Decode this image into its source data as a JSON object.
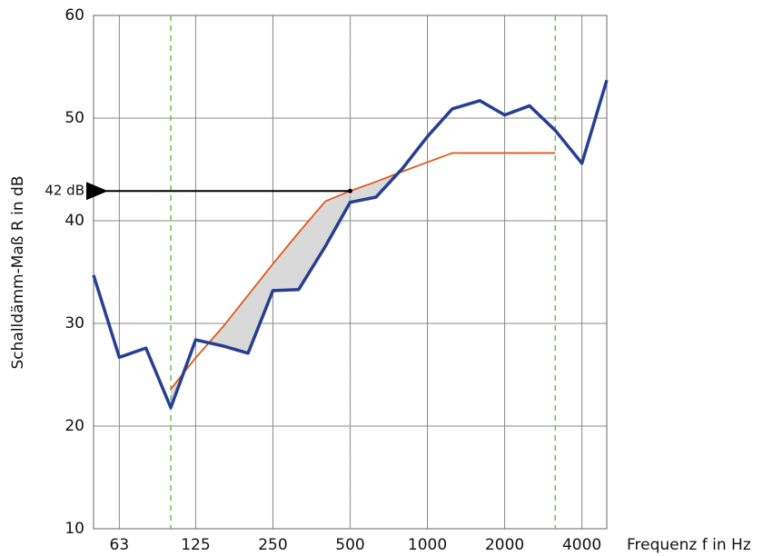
{
  "chart_data": {
    "type": "line",
    "ylabel": "Schalldämm-Maß R in dB",
    "xlabel": "Frequenz f in Hz",
    "x": [
      50,
      63,
      80,
      100,
      125,
      160,
      200,
      250,
      315,
      400,
      500,
      630,
      800,
      1000,
      1250,
      1600,
      2000,
      2500,
      3150,
      4000,
      5000
    ],
    "series": [
      {
        "color": "#263f94",
        "values": [
          34.7,
          26.7,
          27.6,
          21.8,
          28.4,
          27.8,
          27.1,
          33.2,
          33.3,
          37.5,
          41.8,
          42.3,
          45.1,
          48.2,
          50.9,
          51.7,
          50.3,
          51.2,
          48.8,
          45.6,
          53.7
        ]
      },
      {
        "color": "#e05a1e",
        "values": [
          null,
          null,
          null,
          23.6,
          26.65,
          29.7,
          32.75,
          35.8,
          38.85,
          41.9,
          42.9,
          43.8,
          44.8,
          45.7,
          46.6,
          46.6,
          46.6,
          46.6,
          46.6,
          null,
          null
        ]
      }
    ],
    "fill_color": "#d9d9d9",
    "xlim": [
      50,
      5000
    ],
    "xscale": "log",
    "xticks": [
      63,
      125,
      250,
      500,
      1000,
      2000,
      4000
    ],
    "ylim": [
      10,
      60
    ],
    "yticks": [
      10,
      20,
      30,
      40,
      50,
      60
    ],
    "grid": true,
    "vlines": [
      {
        "x": 100,
        "color": "#6abf4b"
      },
      {
        "x": 500,
        "color": "#aaaaaa"
      },
      {
        "x": 3150,
        "color": "#6abf4b"
      }
    ],
    "annotation": {
      "text": "42 dB",
      "x": 500,
      "y": 42.9
    }
  }
}
